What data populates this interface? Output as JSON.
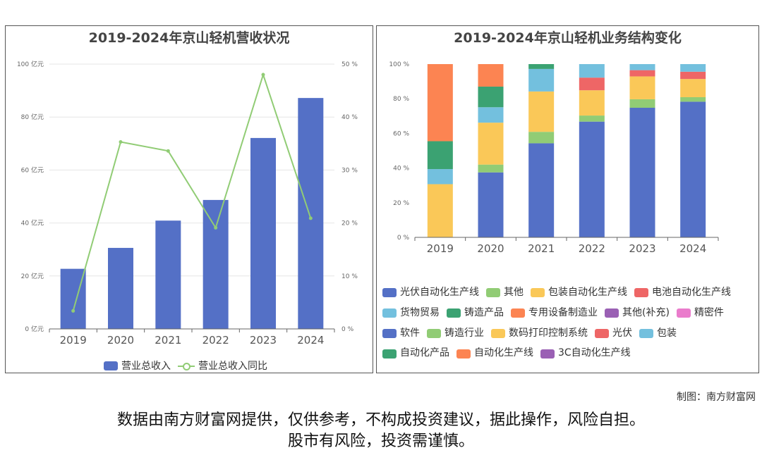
{
  "chart_data": [
    {
      "type": "bar+line",
      "title": "2019-2024年京山轻机营收状况",
      "categories": [
        "2019",
        "2020",
        "2021",
        "2022",
        "2023",
        "2024"
      ],
      "y_left_ticks": [
        "0 亿元",
        "20 亿元",
        "40 亿元",
        "60 亿元",
        "80 亿元",
        "100 亿元"
      ],
      "y_left_lim": [
        0,
        100
      ],
      "y_right_ticks": [
        "0 %",
        "10 %",
        "20 %",
        "30 %",
        "40 %",
        "50 %"
      ],
      "y_right_lim": [
        0,
        50
      ],
      "grid": true,
      "legend_position": "bottom",
      "series": [
        {
          "name": "营业总收入",
          "type": "bar",
          "axis": "left",
          "color": "#5470c6",
          "values": [
            22.7,
            30.6,
            40.9,
            48.7,
            72.1,
            87.2
          ]
        },
        {
          "name": "营业总收入同比",
          "type": "line",
          "axis": "right",
          "color": "#91cc75",
          "values": [
            3.4,
            35.3,
            33.6,
            19.1,
            48.0,
            20.9
          ]
        }
      ]
    },
    {
      "type": "stacked-bar",
      "title": "2019-2024年京山轻机业务结构变化",
      "categories": [
        "2019",
        "2020",
        "2021",
        "2022",
        "2023",
        "2024"
      ],
      "y_ticks": [
        "0 %",
        "20 %",
        "40 %",
        "60 %",
        "80 %",
        "100 %"
      ],
      "ylim": [
        0,
        100
      ],
      "grid": false,
      "legend_position": "bottom",
      "series": [
        {
          "name": "光伏自动化生产线",
          "color": "#5470c6",
          "values": [
            0,
            37.5,
            54.3,
            66.8,
            74.8,
            78.3
          ]
        },
        {
          "name": "其他",
          "color": "#91cc75",
          "values": [
            0,
            4.5,
            6.6,
            3.5,
            4.9,
            2.6
          ]
        },
        {
          "name": "包装自动化生产线",
          "color": "#fac858",
          "values": [
            30.7,
            24.2,
            23.3,
            14.6,
            13.2,
            10.5
          ]
        },
        {
          "name": "电池自动化生产线",
          "color": "#ee6666",
          "values": [
            0,
            0,
            0,
            7.3,
            3.6,
            4.2
          ]
        },
        {
          "name": "货物贸易",
          "color": "#73c0de",
          "values": [
            8.7,
            8.9,
            13.0,
            7.8,
            3.5,
            4.4
          ]
        },
        {
          "name": "铸造产品",
          "color": "#3ba272",
          "values": [
            16.1,
            11.9,
            2.8,
            0,
            0,
            0
          ]
        },
        {
          "name": "专用设备制造业",
          "color": "#fc8452",
          "values": [
            44.5,
            13.0,
            0,
            0,
            0,
            0
          ]
        },
        {
          "name": "其他(补充)",
          "color": "#9a60b4",
          "values": [
            0,
            0,
            0,
            0,
            0,
            0
          ]
        },
        {
          "name": "精密件",
          "color": "#ea7ccc",
          "values": [
            0,
            0,
            0,
            0,
            0,
            0
          ]
        },
        {
          "name": "软件",
          "color": "#5470c6",
          "values": [
            0,
            0,
            0,
            0,
            0,
            0
          ]
        },
        {
          "name": "铸造行业",
          "color": "#91cc75",
          "values": [
            0,
            0,
            0,
            0,
            0,
            0
          ]
        },
        {
          "name": "数码打印控制系统",
          "color": "#fac858",
          "values": [
            0,
            0,
            0,
            0,
            0,
            0
          ]
        },
        {
          "name": "光伏",
          "color": "#ee6666",
          "values": [
            0,
            0,
            0,
            0,
            0,
            0
          ]
        },
        {
          "name": "包装",
          "color": "#73c0de",
          "values": [
            0,
            0,
            0,
            0,
            0,
            0
          ]
        },
        {
          "name": "自动化产品",
          "color": "#3ba272",
          "values": [
            0,
            0,
            0,
            0,
            0,
            0
          ]
        },
        {
          "name": "自动化生产线",
          "color": "#fc8452",
          "values": [
            0,
            0,
            0,
            0,
            0,
            0
          ]
        },
        {
          "name": "3C自动化生产线",
          "color": "#9a60b4",
          "values": [
            0,
            0,
            0,
            0,
            0,
            0
          ]
        }
      ]
    }
  ],
  "credit": "制图：南方财富网",
  "disclaimer_line1": "数据由南方财富网提供，仅供参考，不构成投资建议，据此操作，风险自担。",
  "disclaimer_line2": "股市有风险，投资需谨慎。"
}
